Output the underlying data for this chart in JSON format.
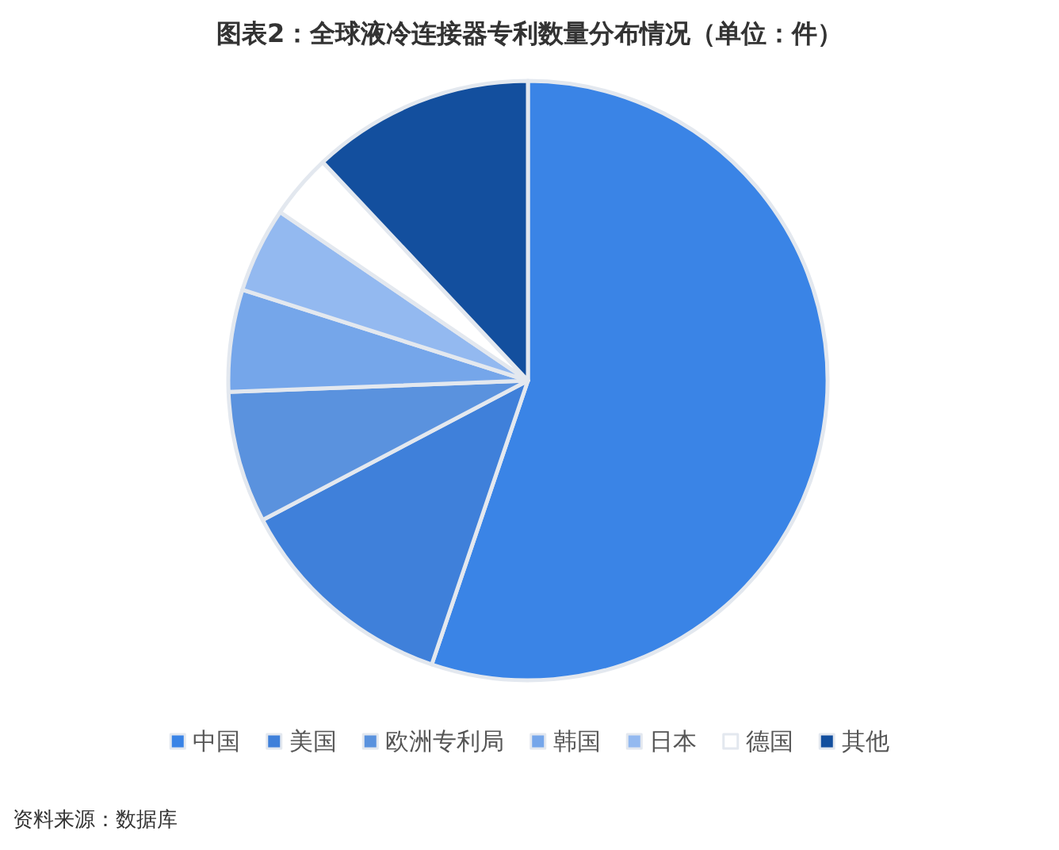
{
  "chart_data": {
    "type": "pie",
    "title": "图表2：全球液冷连接器专利数量分布情况（单位：件）",
    "categories": [
      "中国",
      "美国",
      "欧洲专利局",
      "韩国",
      "日本",
      "德国",
      "其他"
    ],
    "values": [
      55.2,
      12.1,
      7.1,
      5.5,
      4.6,
      3.5,
      12.0
    ],
    "colors": [
      "#3a84e6",
      "#3f80da",
      "#5a92de",
      "#75a6ea",
      "#93b9f0",
      "#ffffff",
      "#134f9e"
    ],
    "legend": "bottom",
    "annotations": [
      "资料来源：数据库"
    ]
  }
}
